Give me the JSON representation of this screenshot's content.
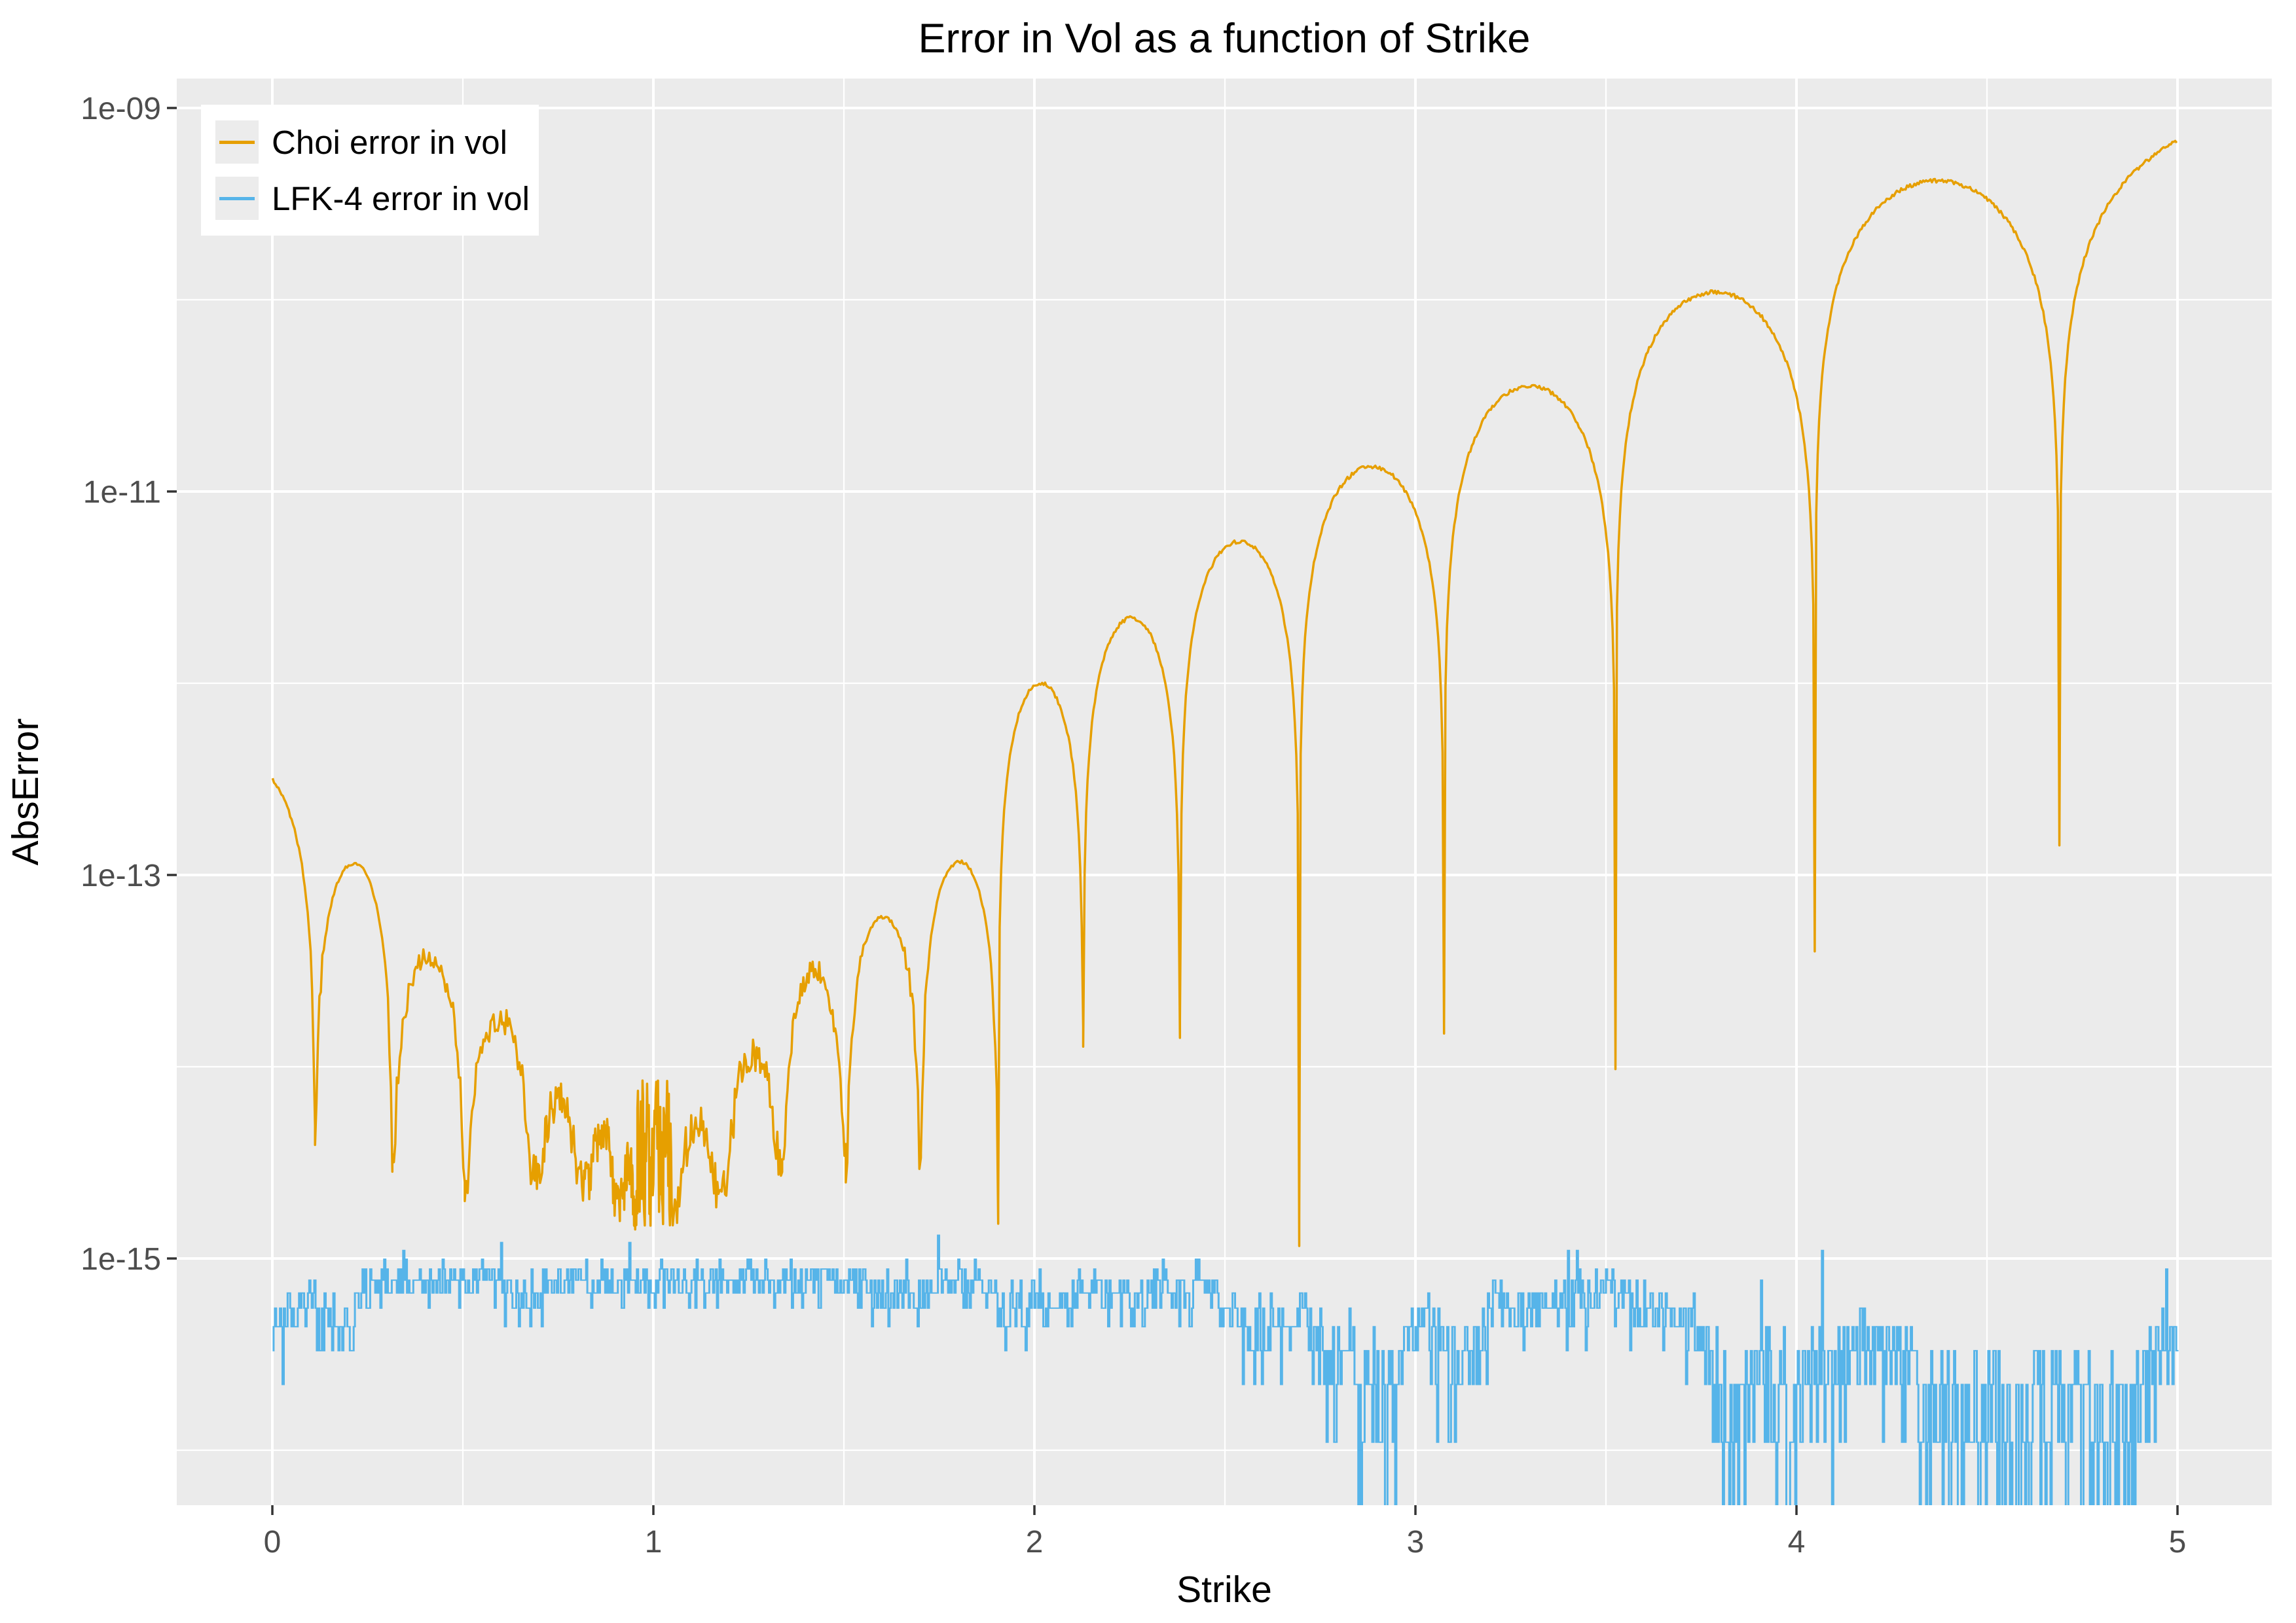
{
  "chart_data": {
    "type": "line",
    "title": "Error in Vol as a function of Strike",
    "xlabel": "Strike",
    "ylabel": "AbsError",
    "grid": "on",
    "background": {
      "panel": "#EBEBEB",
      "plot": "#FFFFFF",
      "gridline": "#FFFFFF"
    },
    "x_axis": {
      "ticks": [
        0,
        1,
        2,
        3,
        4,
        5
      ],
      "tick_labels": [
        "0",
        "1",
        "2",
        "3",
        "4",
        "5"
      ],
      "minor_ticks": [
        0.5,
        1.5,
        2.5,
        3.5,
        4.5
      ],
      "range_shown": [
        -0.25,
        5.25
      ],
      "data_range": [
        0,
        5
      ]
    },
    "y_axis": {
      "scale": "log10",
      "ticks": [
        {
          "label": "1e-09",
          "log10": -9
        },
        {
          "label": "1e-11",
          "log10": -11
        },
        {
          "label": "1e-13",
          "log10": -13
        },
        {
          "label": "1e-15",
          "log10": -15
        }
      ],
      "minor_log10": [
        -10,
        -12,
        -14,
        -16
      ],
      "range_shown_log10": [
        -16.29,
        -8.85
      ]
    },
    "legend": {
      "position": "top-left-inside",
      "entries": [
        {
          "label": "Choi error in vol",
          "color": "#E69F00"
        },
        {
          "label": "LFK-4 error in vol",
          "color": "#56B4E9"
        }
      ]
    },
    "series": [
      {
        "name": "Choi error in vol",
        "color": "#E69F00",
        "line_width": 3.5,
        "description": "Absolute error in implied vol; |oscillating error| forms arches with cusps at sign changes; minimum near strike 1 at the 1e-15 noise floor, growing to ~7e-10 at strike 5. Arches below ~4e-14 show double-precision quantization fuzz.",
        "segments": [
          {
            "kind": "arch",
            "x0": -0.268,
            "x1": 0.112,
            "peak_log10": -12.4,
            "floor_left_log10": -12.52,
            "floor_right_log10": -14.3
          },
          {
            "kind": "arch",
            "x0": 0.112,
            "x1": 0.315,
            "peak_log10": -12.94,
            "floor_left_log10": -14.3,
            "floor_right_log10": -14.5
          },
          {
            "kind": "arch",
            "x0": 0.315,
            "x1": 0.505,
            "peak_log10": -13.42,
            "floor_left_log10": -14.5,
            "floor_right_log10": -14.6
          },
          {
            "kind": "arch",
            "x0": 0.505,
            "x1": 0.686,
            "peak_log10": -13.75,
            "floor_left_log10": -14.6,
            "floor_right_log10": -14.55
          },
          {
            "kind": "arch",
            "x0": 0.686,
            "x1": 0.818,
            "peak_log10": -14.18,
            "floor_left_log10": -14.55,
            "floor_right_log10": -14.6
          },
          {
            "kind": "arch",
            "x0": 0.818,
            "x1": 0.912,
            "peak_log10": -14.35,
            "floor_left_log10": -14.6,
            "floor_right_log10": -14.7
          },
          {
            "kind": "arch",
            "x0": 0.912,
            "x1": 0.958,
            "peak_log10": -14.5,
            "floor_left_log10": -14.7,
            "floor_right_log10": -14.75
          },
          {
            "kind": "noise",
            "x0": 0.958,
            "x1": 1.048,
            "center_log10": -14.45,
            "half_range_log10": 0.38,
            "step": 0.0015
          },
          {
            "kind": "arch",
            "x0": 1.048,
            "x1": 1.185,
            "peak_log10": -14.3,
            "floor_left_log10": -14.75,
            "floor_right_log10": -14.65
          },
          {
            "kind": "arch",
            "x0": 1.185,
            "x1": 1.338,
            "peak_log10": -13.95,
            "floor_left_log10": -14.65,
            "floor_right_log10": -14.45
          },
          {
            "kind": "arch",
            "x0": 1.338,
            "x1": 1.505,
            "peak_log10": -13.5,
            "floor_left_log10": -14.45,
            "floor_right_log10": -14.5
          },
          {
            "kind": "arch",
            "x0": 1.505,
            "x1": 1.702,
            "peak_log10": -13.22,
            "floor_left_log10": -14.5,
            "floor_right_log10": -14.45
          },
          {
            "kind": "arch",
            "x0": 1.702,
            "x1": 1.905,
            "peak_log10": -12.93,
            "floor_left_log10": -14.45,
            "floor_right_log10": -14.8
          },
          {
            "kind": "arch",
            "x0": 1.905,
            "x1": 2.128,
            "peak_log10": -12.0,
            "floor_left_log10": -14.8,
            "floor_right_log10": -13.85
          },
          {
            "kind": "arch",
            "x0": 2.128,
            "x1": 2.382,
            "peak_log10": -11.66,
            "floor_left_log10": -13.85,
            "floor_right_log10": -13.8
          },
          {
            "kind": "arch",
            "x0": 2.382,
            "x1": 2.695,
            "peak_log10": -11.26,
            "floor_left_log10": -13.8,
            "floor_right_log10": -14.9
          },
          {
            "kind": "arch",
            "x0": 2.695,
            "x1": 3.075,
            "peak_log10": -10.87,
            "floor_left_log10": -14.9,
            "floor_right_log10": -13.8
          },
          {
            "kind": "arch",
            "x0": 3.075,
            "x1": 3.525,
            "peak_log10": -10.45,
            "floor_left_log10": -13.8,
            "floor_right_log10": -13.95
          },
          {
            "kind": "arch",
            "x0": 3.525,
            "x1": 4.048,
            "peak_log10": -9.96,
            "floor_left_log10": -13.95,
            "floor_right_log10": -13.4
          },
          {
            "kind": "arch",
            "x0": 4.048,
            "x1": 4.69,
            "peak_log10": -9.38,
            "floor_left_log10": -13.4,
            "floor_right_log10": -12.85
          },
          {
            "kind": "arch",
            "x0": 4.69,
            "x1": 5.76,
            "peak_log10": -9.07,
            "floor_left_log10": -12.85,
            "floor_right_log10": -12.85
          }
        ],
        "endpoints": {
          "start": {
            "x": 0,
            "log10": -12.52
          },
          "end": {
            "x": 5,
            "log10": -9.18
          }
        },
        "jitter": {
          "base_log10": 0.02,
          "fuzzy_below_log10": -13.4,
          "fuzzy_amp_log10": 0.14
        },
        "seed": 777
      },
      {
        "name": "LFK-4 error in vol",
        "color": "#56B4E9",
        "line_width": 3,
        "description": "Absolute error at the double-precision noise floor: quantized multiples k*1.11e-16, k = 0..12 (~0 to 1.3e-15), dense over strikes 0..5; occasional spikes just above 1e-15.",
        "noise": {
          "quantum": 1.11e-16,
          "k_min": 0,
          "k_max": 12,
          "mean_k_range": [
            1.2,
            6.8
          ],
          "walk_prob": 0.07,
          "spread_k": 2.3,
          "spike_prob": 0.01,
          "samples": 1500,
          "x_range": [
            0,
            5
          ],
          "seed": 20240601
        }
      }
    ]
  }
}
